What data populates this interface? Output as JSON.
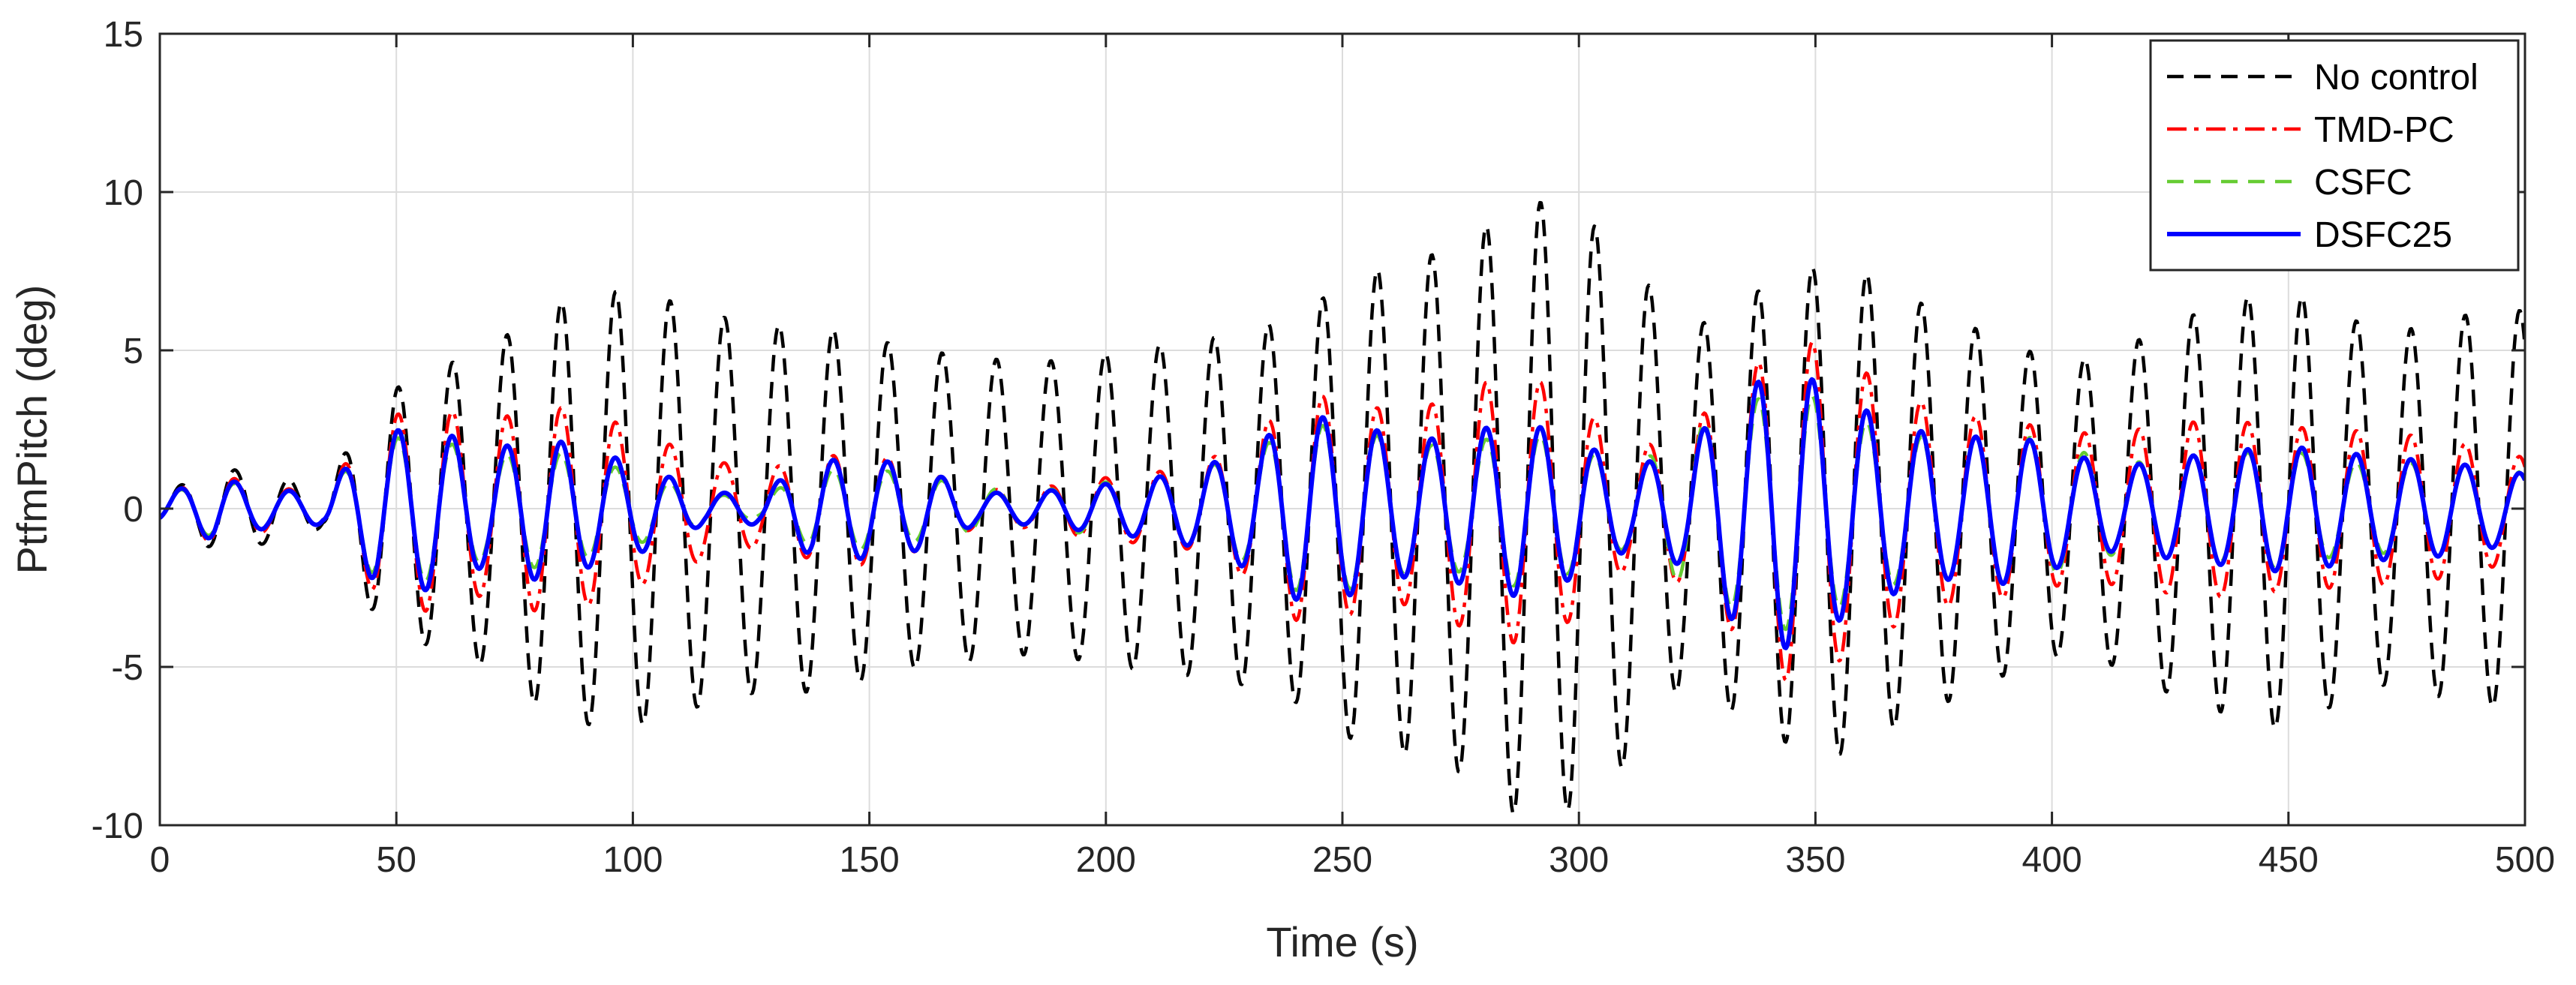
{
  "chart_data": {
    "type": "line",
    "title": "",
    "xlabel": "Time (s)",
    "ylabel": "PtfmPitch (deg)",
    "xlim": [
      0,
      500
    ],
    "ylim": [
      -10,
      15
    ],
    "xticks": [
      "0",
      "50",
      "100",
      "150",
      "200",
      "250",
      "300",
      "350",
      "400",
      "450",
      "500"
    ],
    "yticks": [
      "-10",
      "-5",
      "0",
      "5",
      "10",
      "15"
    ],
    "grid": true,
    "legend_position": "top-right",
    "sample_period_s": 11.5,
    "series": [
      {
        "name": "No control",
        "color": "#000000",
        "dash": "dashed",
        "peak_amplitudes": [
          0.4,
          1.3,
          1.1,
          0.6,
          3.5,
          4.4,
          5.0,
          6.3,
          6.9,
          6.8,
          6.2,
          5.8,
          5.8,
          5.4,
          5.0,
          4.8,
          4.6,
          4.8,
          5.1,
          5.3,
          5.6,
          6.2,
          7.4,
          7.8,
          8.4,
          9.8,
          9.5,
          8.0,
          5.5,
          6.5,
          7.5,
          7.8,
          6.8,
          6.0,
          5.2,
          4.6,
          5.0,
          5.9,
          6.5,
          7.0,
          6.2,
          5.5,
          6.0,
          6.3,
          6.2
        ]
      },
      {
        "name": "TMD-PC",
        "color": "#ff0000",
        "dash": "dash-dot",
        "peak_amplitudes": [
          0.4,
          1.1,
          0.7,
          0.5,
          2.8,
          3.3,
          2.7,
          3.3,
          3.0,
          2.3,
          1.6,
          1.2,
          1.6,
          1.8,
          1.3,
          0.6,
          0.6,
          0.9,
          1.1,
          1.3,
          2.2,
          3.7,
          3.3,
          3.0,
          3.8,
          4.3,
          3.5,
          1.8,
          2.4,
          4.0,
          5.6,
          4.7,
          3.6,
          3.0,
          2.8,
          2.4,
          2.4,
          2.7,
          2.8,
          2.6,
          2.5,
          2.4,
          2.2,
          1.8,
          1.4
        ]
      },
      {
        "name": "CSFC",
        "color": "#66cc33",
        "dash": "dashed",
        "peak_amplitudes": [
          0.4,
          0.9,
          0.6,
          0.5,
          2.2,
          2.3,
          1.6,
          1.9,
          1.5,
          1.0,
          0.5,
          0.3,
          1.2,
          1.3,
          1.0,
          0.7,
          0.5,
          0.8,
          0.9,
          1.2,
          1.7,
          2.7,
          2.5,
          2.0,
          2.0,
          2.5,
          2.0,
          1.2,
          2.4,
          3.2,
          3.9,
          3.0,
          2.3,
          2.2,
          2.4,
          2.0,
          1.4,
          1.6,
          1.7,
          1.9,
          1.5,
          1.4,
          1.5,
          1.2,
          1.1
        ]
      },
      {
        "name": "DSFC25",
        "color": "#0000ff",
        "dash": "solid",
        "peak_amplitudes": [
          0.4,
          1.0,
          0.6,
          0.5,
          2.4,
          2.6,
          1.8,
          2.3,
          1.8,
          1.3,
          0.5,
          0.5,
          1.5,
          1.6,
          1.3,
          0.5,
          0.5,
          0.7,
          0.9,
          1.2,
          1.9,
          3.0,
          2.7,
          2.1,
          2.4,
          2.8,
          2.2,
          1.3,
          1.8,
          3.7,
          4.5,
          3.4,
          2.6,
          2.2,
          2.4,
          1.8,
          1.3,
          1.6,
          1.8,
          2.0,
          1.8,
          1.6,
          1.5,
          1.2,
          1.0
        ]
      }
    ]
  }
}
